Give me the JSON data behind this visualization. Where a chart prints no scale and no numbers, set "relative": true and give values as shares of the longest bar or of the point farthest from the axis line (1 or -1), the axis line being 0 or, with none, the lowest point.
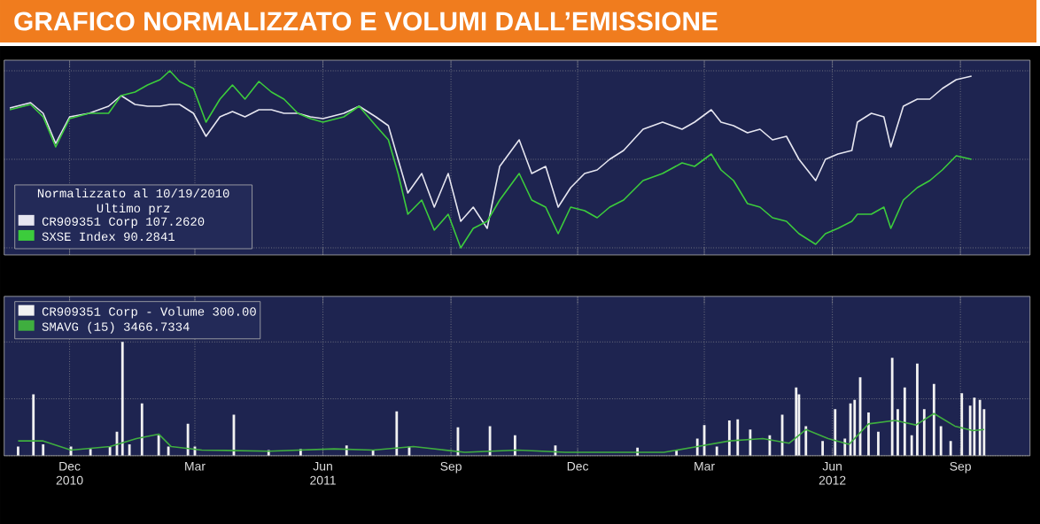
{
  "chart_data": [
    {
      "type": "line",
      "title": "GRAFICO NORMALIZZATO E VOLUMI DALL’EMISSIONE",
      "relative": true,
      "legend_title": "Normalizzato al 10/19/2010 Ultimo prz",
      "legend": "bottom left",
      "grid": true,
      "tick_labels": false,
      "xlim": [
        "2010-10-15",
        "2012-10-21"
      ],
      "xticks": [
        {
          "value": "2010-12-01",
          "label": null
        },
        {
          "value": "2011-03-01",
          "label": null
        },
        {
          "value": "2011-06-01",
          "label": null
        },
        {
          "value": "2011-09-01",
          "label": null
        },
        {
          "value": "2011-12-01",
          "label": null
        },
        {
          "value": "2012-03-01",
          "label": null
        },
        {
          "value": "2012-06-01",
          "label": null
        },
        {
          "value": "2012-09-01",
          "label": null
        }
      ],
      "x": [
        "2010-10-19",
        "2010-11-03",
        "2010-11-12",
        "2010-11-21",
        "2010-12-01",
        "2010-12-15",
        "2010-12-29",
        "2011-01-07",
        "2011-01-17",
        "2011-01-26",
        "2011-02-04",
        "2011-02-11",
        "2011-02-18",
        "2011-02-28",
        "2011-03-09",
        "2011-03-19",
        "2011-03-28",
        "2011-04-06",
        "2011-04-16",
        "2011-04-25",
        "2011-05-04",
        "2011-05-14",
        "2011-05-23",
        "2011-06-01",
        "2011-06-16",
        "2011-06-27",
        "2011-07-09",
        "2011-07-18",
        "2011-07-25",
        "2011-08-01",
        "2011-08-11",
        "2011-08-20",
        "2011-08-30",
        "2011-09-08",
        "2011-09-17",
        "2011-09-27",
        "2011-10-06",
        "2011-10-20",
        "2011-10-29",
        "2011-11-08",
        "2011-11-17",
        "2011-11-26",
        "2011-12-06",
        "2011-12-15",
        "2011-12-24",
        "2012-01-03",
        "2012-01-17",
        "2012-01-31",
        "2012-02-14",
        "2012-02-23",
        "2012-03-06",
        "2012-03-13",
        "2012-03-22",
        "2012-04-01",
        "2012-04-10",
        "2012-04-19",
        "2012-04-29",
        "2012-05-08",
        "2012-05-20",
        "2012-05-27",
        "2012-06-05",
        "2012-06-15",
        "2012-06-19",
        "2012-06-29",
        "2012-07-08",
        "2012-07-13",
        "2012-07-22",
        "2012-08-01",
        "2012-08-10",
        "2012-08-19",
        "2012-08-29",
        "2012-09-09"
      ],
      "series": [
        {
          "name": "CR909351 Corp 107.2620",
          "color": "#e6e6f0",
          "values": [
            0.79,
            0.82,
            0.76,
            0.59,
            0.74,
            0.76,
            0.8,
            0.86,
            0.81,
            0.8,
            0.8,
            0.81,
            0.81,
            0.76,
            0.63,
            0.74,
            0.77,
            0.74,
            0.78,
            0.78,
            0.76,
            0.76,
            0.74,
            0.73,
            0.76,
            0.8,
            0.74,
            0.69,
            0.5,
            0.31,
            0.42,
            0.23,
            0.42,
            0.15,
            0.23,
            0.11,
            0.46,
            0.61,
            0.42,
            0.46,
            0.23,
            0.34,
            0.42,
            0.44,
            0.5,
            0.55,
            0.67,
            0.71,
            0.67,
            0.71,
            0.78,
            0.71,
            0.69,
            0.65,
            0.67,
            0.61,
            0.63,
            0.5,
            0.38,
            0.5,
            0.53,
            0.55,
            0.71,
            0.76,
            0.74,
            0.57,
            0.8,
            0.84,
            0.84,
            0.9,
            0.95,
            0.97
          ]
        },
        {
          "name": "SXSE Index 90.2841",
          "color": "#3ccc3c",
          "values": [
            0.78,
            0.81,
            0.74,
            0.57,
            0.73,
            0.76,
            0.76,
            0.86,
            0.88,
            0.92,
            0.95,
            1.0,
            0.94,
            0.9,
            0.71,
            0.84,
            0.92,
            0.84,
            0.94,
            0.88,
            0.84,
            0.76,
            0.73,
            0.71,
            0.74,
            0.8,
            0.69,
            0.61,
            0.42,
            0.19,
            0.27,
            0.1,
            0.19,
            0.0,
            0.11,
            0.15,
            0.27,
            0.42,
            0.27,
            0.23,
            0.08,
            0.23,
            0.21,
            0.17,
            0.23,
            0.27,
            0.38,
            0.42,
            0.48,
            0.46,
            0.53,
            0.44,
            0.38,
            0.25,
            0.23,
            0.17,
            0.15,
            0.08,
            0.02,
            0.08,
            0.11,
            0.15,
            0.19,
            0.19,
            0.23,
            0.11,
            0.27,
            0.34,
            0.38,
            0.44,
            0.52,
            0.5
          ]
        }
      ]
    },
    {
      "type": "bar",
      "relative": true,
      "legend": "top left",
      "grid": true,
      "tick_labels": "x",
      "xlim": [
        "2010-10-15",
        "2012-10-21"
      ],
      "xticks": [
        {
          "value": "2010-12-01",
          "label": "Dec 2010"
        },
        {
          "value": "2011-03-01",
          "label": "Mar"
        },
        {
          "value": "2011-06-01",
          "label": "Jun 2011"
        },
        {
          "value": "2011-09-01",
          "label": "Sep"
        },
        {
          "value": "2011-12-01",
          "label": "Dec"
        },
        {
          "value": "2012-03-01",
          "label": "Mar"
        },
        {
          "value": "2012-06-01",
          "label": "Jun 2012"
        },
        {
          "value": "2012-09-01",
          "label": "Sep"
        }
      ],
      "series": [
        {
          "name": "CR909351 Corp - Volume 300.00",
          "color": "#f2f2f2",
          "x": [
            "2010-10-25",
            "2010-11-05",
            "2010-11-12",
            "2010-12-02",
            "2010-12-16",
            "2010-12-30",
            "2011-01-04",
            "2011-01-08",
            "2011-01-13",
            "2011-01-22",
            "2011-02-03",
            "2011-02-10",
            "2011-02-24",
            "2011-03-01",
            "2011-03-29",
            "2011-04-23",
            "2011-05-16",
            "2011-06-18",
            "2011-07-07",
            "2011-07-24",
            "2011-08-02",
            "2011-09-06",
            "2011-09-29",
            "2011-10-17",
            "2011-11-15",
            "2011-12-16",
            "2012-01-13",
            "2012-02-10",
            "2012-02-25",
            "2012-03-01",
            "2012-03-10",
            "2012-03-19",
            "2012-03-25",
            "2012-04-03",
            "2012-04-17",
            "2012-04-26",
            "2012-05-06",
            "2012-05-08",
            "2012-05-13",
            "2012-05-25",
            "2012-06-03",
            "2012-06-10",
            "2012-06-14",
            "2012-06-17",
            "2012-06-21",
            "2012-06-27",
            "2012-07-04",
            "2012-07-14",
            "2012-07-18",
            "2012-07-23",
            "2012-07-28",
            "2012-08-01",
            "2012-08-06",
            "2012-08-13",
            "2012-08-18",
            "2012-08-25",
            "2012-09-02",
            "2012-09-08",
            "2012-09-11",
            "2012-09-15",
            "2012-09-18"
          ],
          "values": [
            0.08,
            0.54,
            0.1,
            0.08,
            0.06,
            0.08,
            0.21,
            1,
            0.1,
            0.46,
            0.18,
            0.08,
            0.28,
            0.08,
            0.36,
            0.05,
            0.06,
            0.09,
            0.05,
            0.39,
            0.08,
            0.25,
            0.26,
            0.18,
            0.09,
            null,
            0.07,
            0.05,
            0.15,
            0.27,
            0.08,
            0.31,
            0.32,
            0.23,
            0.18,
            0.36,
            0.6,
            0.54,
            0.26,
            0.13,
            0.41,
            0.15,
            0.46,
            0.49,
            0.69,
            0.38,
            0.21,
            0.86,
            0.41,
            0.6,
            0.18,
            0.81,
            0.41,
            0.63,
            0.26,
            0.13,
            0.55,
            0.44,
            0.51,
            0.49,
            0.41
          ]
        },
        {
          "name": "SMAVG (15) 3466.7334",
          "type": "line",
          "color": "#3fae3f",
          "x": [
            "2010-10-25",
            "2010-11-12",
            "2010-12-02",
            "2010-12-30",
            "2011-01-18",
            "2011-02-03",
            "2011-02-12",
            "2011-03-06",
            "2011-04-23",
            "2011-06-09",
            "2011-07-07",
            "2011-08-05",
            "2011-09-11",
            "2011-10-19",
            "2011-11-22",
            "2012-02-01",
            "2012-02-25",
            "2012-03-19",
            "2012-04-12",
            "2012-05-01",
            "2012-05-13",
            "2012-05-29",
            "2012-06-13",
            "2012-06-27",
            "2012-07-16",
            "2012-07-31",
            "2012-08-13",
            "2012-08-28",
            "2012-09-10",
            "2012-09-18"
          ],
          "values": [
            0.13,
            0.13,
            0.05,
            0.08,
            0.15,
            0.19,
            0.08,
            0.05,
            0.04,
            0.06,
            0.05,
            0.08,
            0.03,
            0.05,
            0.03,
            0.03,
            0.08,
            0.13,
            0.15,
            0.11,
            0.23,
            0.15,
            0.1,
            0.28,
            0.31,
            0.27,
            0.37,
            0.26,
            0.22,
            0.23
          ]
        }
      ]
    }
  ]
}
